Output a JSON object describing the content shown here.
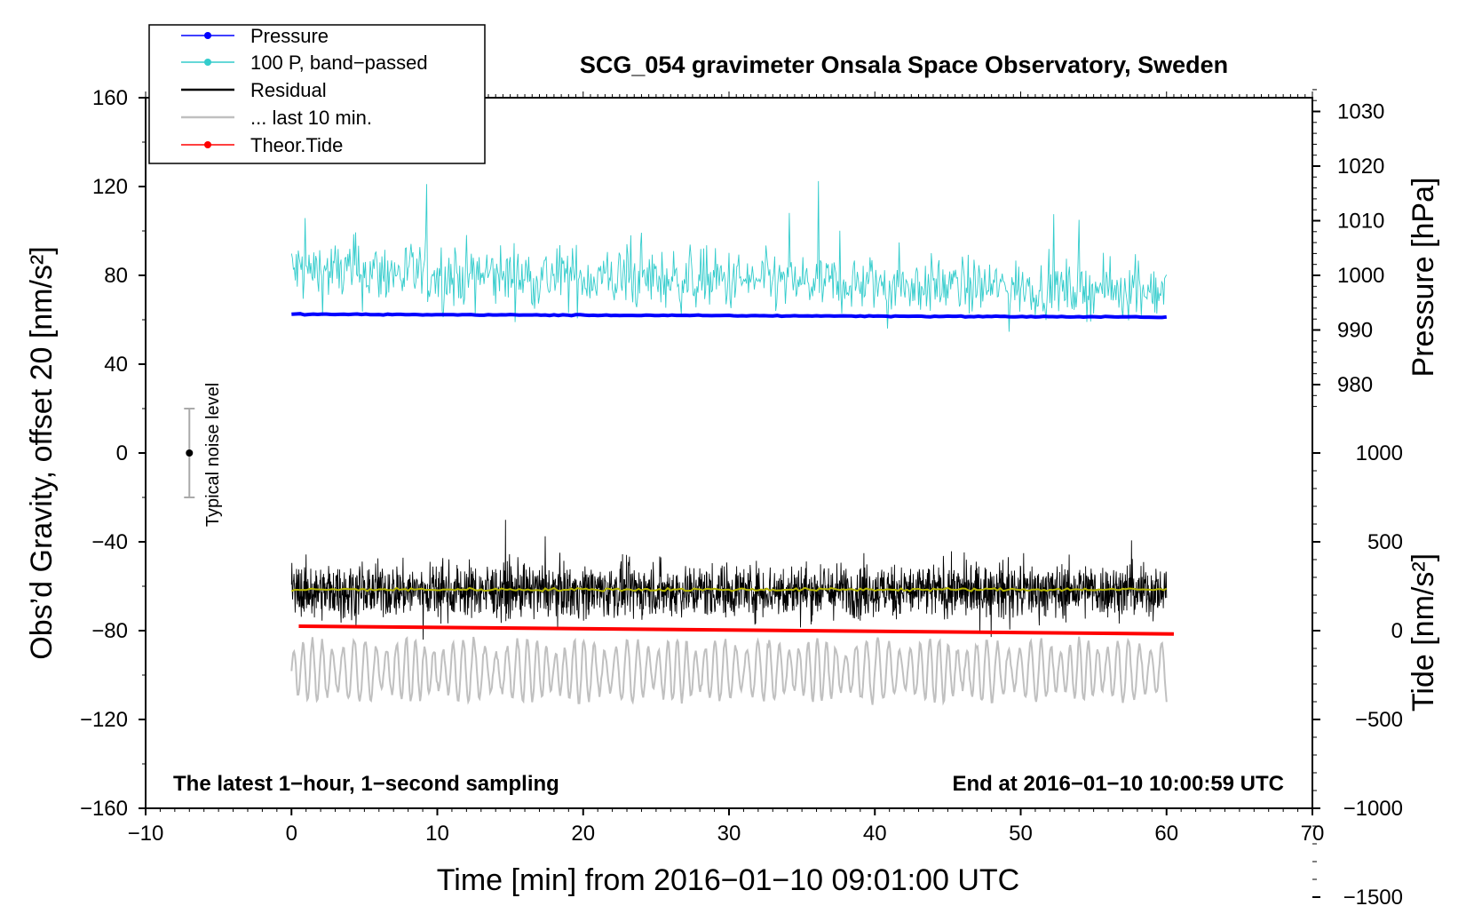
{
  "chart_data": {
    "type": "line",
    "title": "SCG_054 gravimeter Onsala Space Observatory, Sweden",
    "xlabel": "Time [min] from 2016−01−10 09:01:00 UTC",
    "ylabel_left": "Obs’d Gravity, offset 20 [nm/s²]",
    "ylabel_right_top": "Pressure [hPa]",
    "ylabel_right_bottom": "Tide [nm/s²]",
    "xlim": [
      -10,
      70
    ],
    "ylim": [
      -160,
      160
    ],
    "x_ticks": [
      -10,
      0,
      10,
      20,
      30,
      40,
      50,
      60,
      70
    ],
    "x_tick_labels": [
      "−10",
      "0",
      "10",
      "20",
      "30",
      "40",
      "50",
      "60",
      "70"
    ],
    "y_ticks": [
      160,
      120,
      80,
      40,
      0,
      -40,
      -80,
      -120,
      -160
    ],
    "y_tick_labels": [
      "160",
      "120",
      "80",
      "40",
      "0",
      "−40",
      "−80",
      "−120",
      "−160"
    ],
    "pressure_axis": {
      "ticks": [
        1030,
        1020,
        1010,
        1000,
        990,
        980
      ],
      "tick_labels": [
        "1030",
        "1020",
        "1010",
        "1000",
        "990",
        "980"
      ],
      "left_equivalent_at_1000": 80,
      "units_per_hpa": 2.46
    },
    "tide_axis": {
      "ticks": [
        1000,
        500,
        0,
        -500,
        -1000,
        -1500
      ],
      "tick_labels": [
        "1000",
        "500",
        "0",
        "−500",
        "−1000",
        "−1500"
      ],
      "left_equivalent_at_0": -80,
      "units_per_nms2": 0.08
    },
    "annotation_left": "The latest 1−hour, 1−second sampling",
    "annotation_right": "End at 2016−01−10 10:00:59 UTC",
    "noise_label": "Typical noise level",
    "noise_bar": {
      "x": -7,
      "center": 0,
      "low": -20,
      "high": 20
    },
    "legend": [
      {
        "label": "Pressure",
        "color": "#0000ff",
        "marker": true
      },
      {
        "label": "100 P, band−passed",
        "color": "#33cccc",
        "marker": true
      },
      {
        "label": "Residual",
        "color": "#000000",
        "marker": false
      },
      {
        "label": "... last 10 min.",
        "color": "#c0c0c0",
        "marker": false
      },
      {
        "label": "Theor.Tide",
        "color": "#ff0000",
        "marker": true
      }
    ],
    "series": [
      {
        "name": "Pressure",
        "color": "#0000ff",
        "x_range": [
          0,
          60
        ],
        "y_start": 62.5,
        "y_end": 61.2,
        "style": "thick"
      },
      {
        "name": "100 P, band−passed",
        "color": "#33cccc",
        "x_range": [
          0,
          60
        ],
        "baseline_start": 82,
        "baseline_end": 73,
        "amplitude": 12
      },
      {
        "name": "Residual",
        "color": "#000000",
        "x_range": [
          0,
          60
        ],
        "baseline": -62,
        "amplitude": 14
      },
      {
        "name": "Residual smoothed",
        "color": "#b5b500",
        "x_range": [
          0,
          60
        ],
        "baseline": -61.5
      },
      {
        "name": "... last 10 min.",
        "color": "#c0c0c0",
        "x_range": [
          0,
          60
        ],
        "baseline": -98,
        "amplitude": 14
      },
      {
        "name": "Theor.Tide",
        "color": "#ff0000",
        "x_range": [
          0.5,
          60.5
        ],
        "y_start": -78,
        "y_end": -81.5
      }
    ]
  }
}
